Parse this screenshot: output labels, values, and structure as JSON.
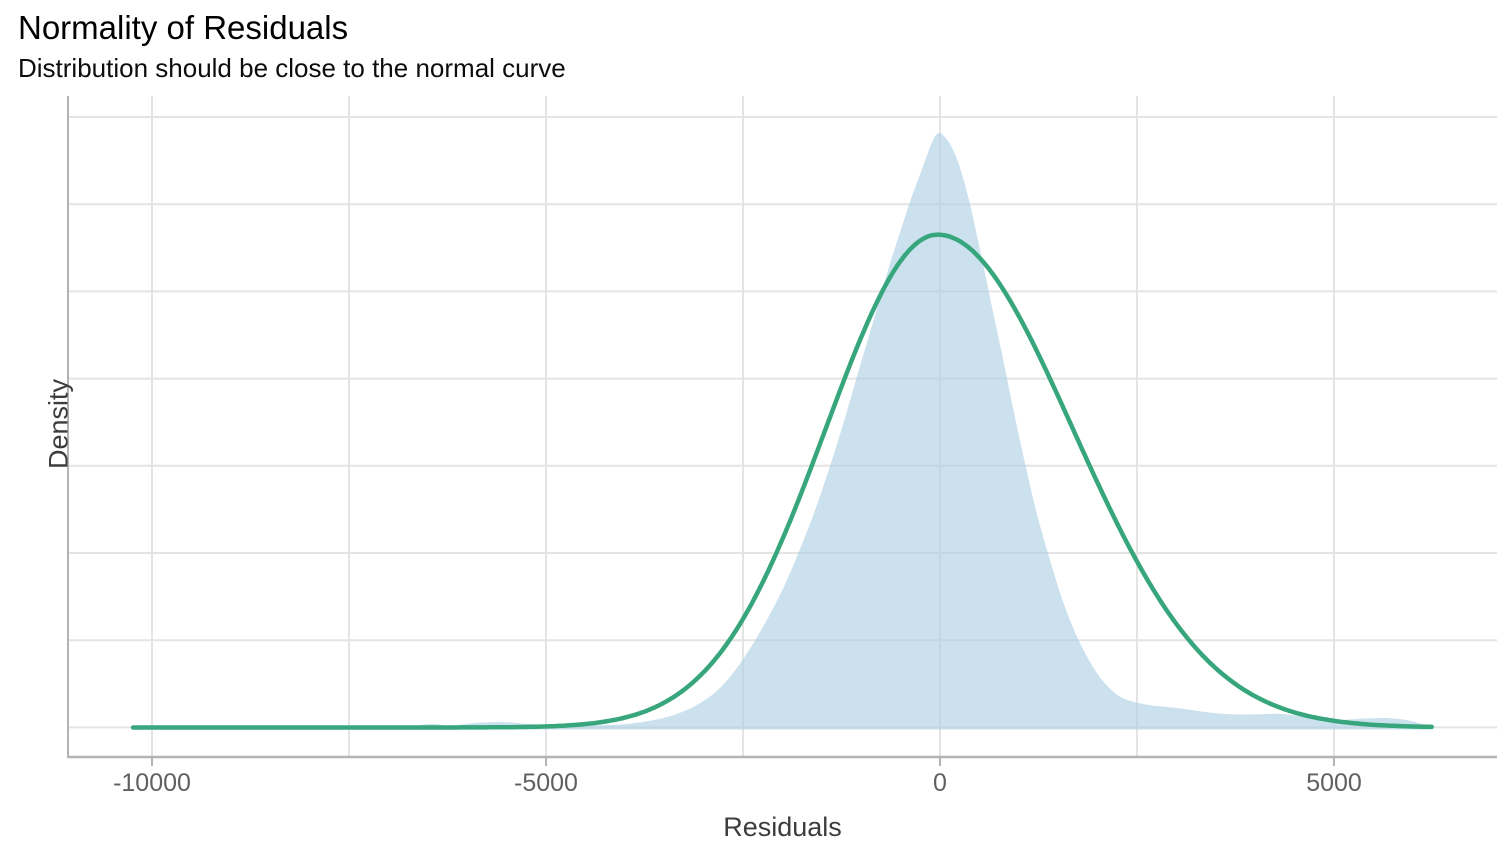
{
  "title": "Normality of Residuals",
  "subtitle": "Distribution should be close to the normal curve",
  "axes": {
    "x_label": "Residuals",
    "y_label": "Density",
    "x_ticks": [
      {
        "value": -10000,
        "label": "-10000"
      },
      {
        "value": -5000,
        "label": "-5000"
      },
      {
        "value": 0,
        "label": "0"
      },
      {
        "value": 5000,
        "label": "5000"
      }
    ],
    "x_minor_breaks": [
      -7500,
      -2500,
      2500
    ],
    "y_tick_labels_shown": false
  },
  "colors": {
    "kde_fill": "rgba(171,206,227,0.62)",
    "normal_curve": "#38a67d",
    "gridline": "#e4e4e4",
    "axis_line": "#b3b3b3",
    "tick_mark": "#b3b3b3",
    "tick_label": "#606060",
    "axis_title": "#3c3c3c",
    "title_text": "#000000"
  },
  "chart_data": {
    "type": "area",
    "title": "Normality of Residuals",
    "subtitle": "Distribution should be close to the normal curve",
    "xlabel": "Residuals",
    "ylabel": "Density",
    "x_domain": [
      -11066,
      7068
    ],
    "grid": true,
    "legend": "none",
    "y_units": "density normalized so the KDE peak = 1.0",
    "series": [
      {
        "name": "residuals-density-kde",
        "style": "filled-area",
        "samples": [
          [
            -6900,
            0.0
          ],
          [
            -6660,
            0.003
          ],
          [
            -6450,
            0.006
          ],
          [
            -6240,
            0.003
          ],
          [
            -6070,
            0.005
          ],
          [
            -5860,
            0.008
          ],
          [
            -5520,
            0.009
          ],
          [
            -5230,
            0.006
          ],
          [
            -4970,
            0.004
          ],
          [
            -4700,
            0.005
          ],
          [
            -4380,
            0.004
          ],
          [
            -4060,
            0.005
          ],
          [
            -3740,
            0.01
          ],
          [
            -3450,
            0.018
          ],
          [
            -3170,
            0.032
          ],
          [
            -2920,
            0.052
          ],
          [
            -2730,
            0.075
          ],
          [
            -2540,
            0.107
          ],
          [
            -2350,
            0.146
          ],
          [
            -2160,
            0.19
          ],
          [
            -1970,
            0.24
          ],
          [
            -1780,
            0.299
          ],
          [
            -1590,
            0.364
          ],
          [
            -1400,
            0.438
          ],
          [
            -1210,
            0.519
          ],
          [
            -1020,
            0.606
          ],
          [
            -825,
            0.693
          ],
          [
            -635,
            0.78
          ],
          [
            -480,
            0.844
          ],
          [
            -355,
            0.894
          ],
          [
            -240,
            0.935
          ],
          [
            -150,
            0.968
          ],
          [
            -75,
            0.992
          ],
          [
            -25,
            0.999
          ],
          [
            25,
            0.998
          ],
          [
            125,
            0.982
          ],
          [
            230,
            0.951
          ],
          [
            355,
            0.894
          ],
          [
            480,
            0.821
          ],
          [
            635,
            0.723
          ],
          [
            790,
            0.626
          ],
          [
            940,
            0.529
          ],
          [
            1090,
            0.438
          ],
          [
            1240,
            0.354
          ],
          [
            1400,
            0.28
          ],
          [
            1550,
            0.216
          ],
          [
            1700,
            0.164
          ],
          [
            1850,
            0.123
          ],
          [
            2005,
            0.089
          ],
          [
            2160,
            0.065
          ],
          [
            2310,
            0.05
          ],
          [
            2490,
            0.042
          ],
          [
            2690,
            0.037
          ],
          [
            2920,
            0.034
          ],
          [
            3170,
            0.03
          ],
          [
            3430,
            0.025
          ],
          [
            3710,
            0.022
          ],
          [
            4000,
            0.022
          ],
          [
            4290,
            0.023
          ],
          [
            4570,
            0.019
          ],
          [
            4850,
            0.013
          ],
          [
            5110,
            0.013
          ],
          [
            5360,
            0.015
          ],
          [
            5650,
            0.016
          ],
          [
            5900,
            0.013
          ],
          [
            6090,
            0.007
          ],
          [
            6240,
            0.001
          ]
        ]
      },
      {
        "name": "normal-curve",
        "style": "line",
        "shape": {
          "kind": "gaussian",
          "mean": -30,
          "sigma_left": 1420,
          "sigma_right": 1715,
          "peak_height": 0.829,
          "x_start": -10240,
          "x_end": 6240
        }
      }
    ]
  }
}
